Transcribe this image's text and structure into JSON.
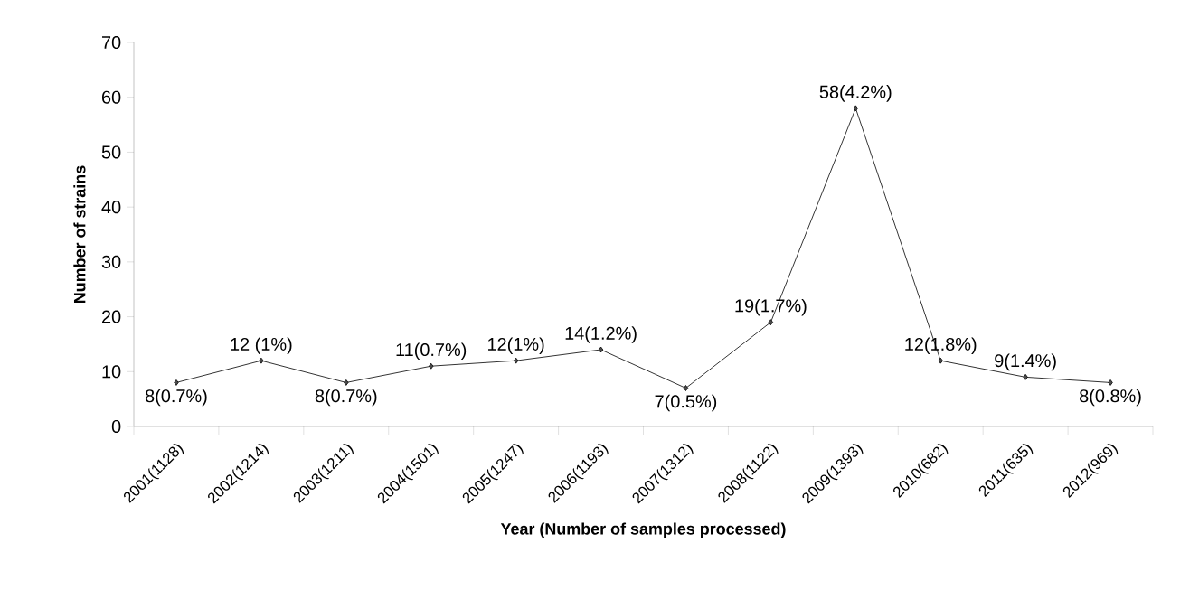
{
  "chart_data": {
    "type": "line",
    "xlabel": "Year (Number of samples processed)",
    "ylabel": "Number of strains",
    "categories": [
      "2001(1128)",
      "2002(1214)",
      "2003(1211)",
      "2004(1501)",
      "2005(1247)",
      "2006(1193)",
      "2007(1312)",
      "2008(1122)",
      "2009(1393)",
      "2010(682)",
      "2011(635)",
      "2012(969)"
    ],
    "values": [
      8,
      12,
      8,
      11,
      12,
      14,
      7,
      19,
      58,
      12,
      9,
      8
    ],
    "value_labels": [
      "8(0.7%)",
      "12 (1%)",
      "8(0.7%)",
      "11(0.7%)",
      "12(1%)",
      "14(1.2%)",
      "7(0.5%)",
      "19(1.7%)",
      "58(4.2%)",
      "12(1.8%)",
      "9(1.4%)",
      "8(0.8%)"
    ],
    "color": "#000000",
    "marker": "diamond",
    "line_style": "solid",
    "ylim": [
      0,
      70
    ],
    "yticks": [
      0,
      10,
      20,
      30,
      40,
      50,
      60,
      70
    ],
    "grid": false
  }
}
